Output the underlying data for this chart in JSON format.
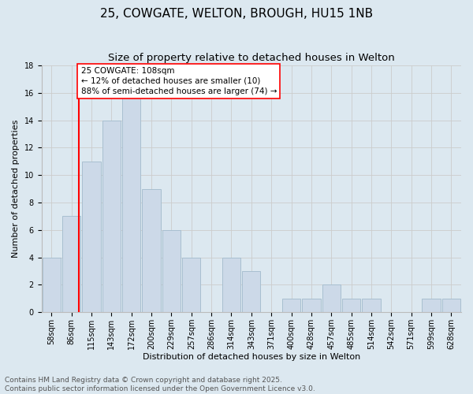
{
  "title": "25, COWGATE, WELTON, BROUGH, HU15 1NB",
  "subtitle": "Size of property relative to detached houses in Welton",
  "xlabel": "Distribution of detached houses by size in Welton",
  "ylabel": "Number of detached properties",
  "bar_labels": [
    "58sqm",
    "86sqm",
    "115sqm",
    "143sqm",
    "172sqm",
    "200sqm",
    "229sqm",
    "257sqm",
    "286sqm",
    "314sqm",
    "343sqm",
    "371sqm",
    "400sqm",
    "428sqm",
    "457sqm",
    "485sqm",
    "514sqm",
    "542sqm",
    "571sqm",
    "599sqm",
    "628sqm"
  ],
  "bar_values": [
    4,
    7,
    11,
    14,
    16,
    9,
    6,
    4,
    0,
    4,
    3,
    0,
    1,
    1,
    2,
    1,
    1,
    0,
    0,
    1,
    1
  ],
  "bar_color": "#ccd9e8",
  "bar_edge_color": "#a8bfd0",
  "grid_color": "#cccccc",
  "background_color": "#dce8f0",
  "vline_x": 1.37,
  "vline_color": "red",
  "annotation_text": "25 COWGATE: 108sqm\n← 12% of detached houses are smaller (10)\n88% of semi-detached houses are larger (74) →",
  "annotation_box_color": "white",
  "annotation_box_edge": "red",
  "ylim": [
    0,
    18
  ],
  "yticks": [
    0,
    2,
    4,
    6,
    8,
    10,
    12,
    14,
    16,
    18
  ],
  "footer_line1": "Contains HM Land Registry data © Crown copyright and database right 2025.",
  "footer_line2": "Contains public sector information licensed under the Open Government Licence v3.0.",
  "title_fontsize": 11,
  "subtitle_fontsize": 9.5,
  "axis_label_fontsize": 8,
  "tick_fontsize": 7,
  "annotation_fontsize": 7.5,
  "footer_fontsize": 6.5
}
